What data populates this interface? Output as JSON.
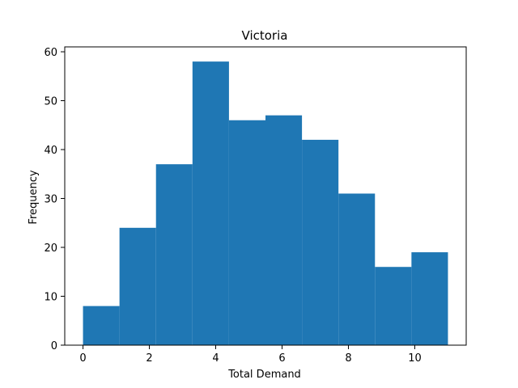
{
  "chart_data": {
    "type": "bar",
    "subtype": "histogram",
    "title": "Victoria",
    "xlabel": "Total Demand",
    "ylabel": "Frequency",
    "bin_edges": [
      0,
      1.1,
      2.2,
      3.3,
      4.4,
      5.5,
      6.6,
      7.7,
      8.8,
      9.9,
      11
    ],
    "values": [
      8,
      24,
      37,
      58,
      46,
      47,
      42,
      31,
      16,
      19
    ],
    "xlim": [
      -0.55,
      11.55
    ],
    "ylim": [
      0,
      61
    ],
    "xticks": [
      0,
      2,
      4,
      6,
      8,
      10
    ],
    "yticks": [
      0,
      10,
      20,
      30,
      40,
      50,
      60
    ],
    "bar_color": "#1f77b4",
    "grid": false
  }
}
